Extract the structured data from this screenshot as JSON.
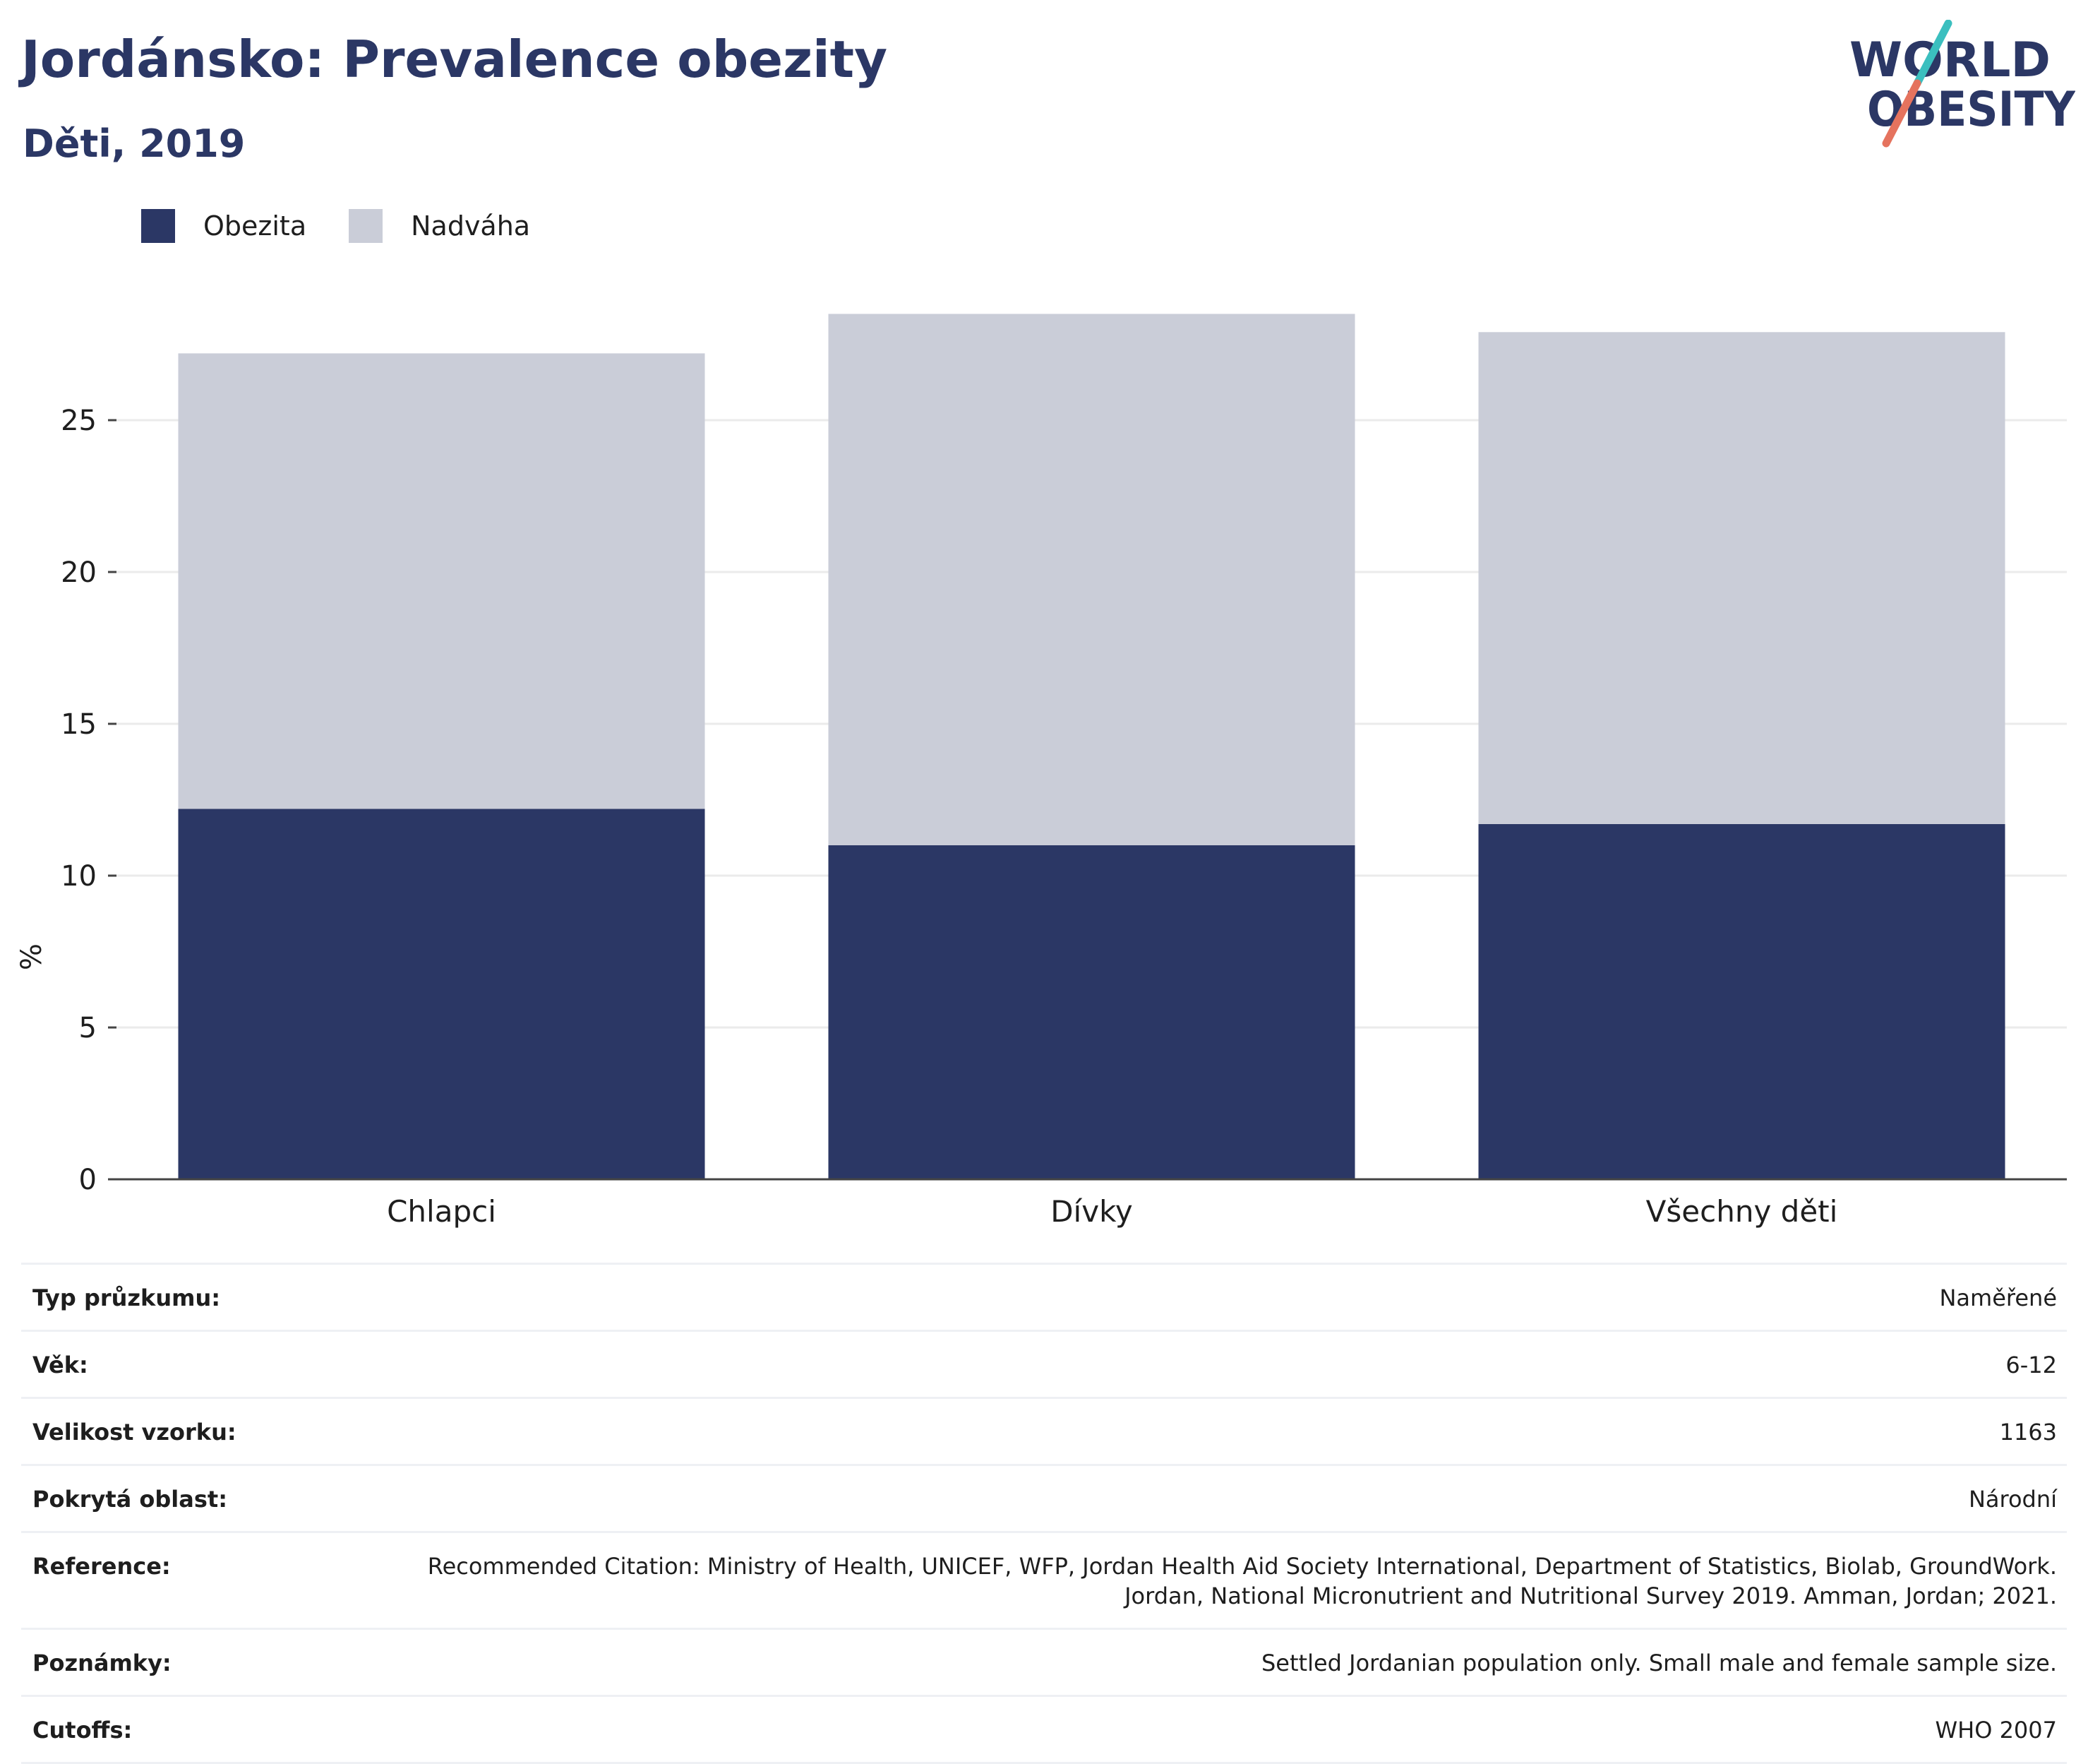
{
  "header": {
    "title": "Jordánsko: Prevalence obezity",
    "subtitle": "Děti, 2019"
  },
  "logo": {
    "line1": "WORLD",
    "line2": "OBESITY",
    "slash_color_top": "#3bbfbf",
    "slash_color_bottom": "#e5735e"
  },
  "legend": [
    {
      "label": "Obezita",
      "color": "#2b3765"
    },
    {
      "label": "Nadváha",
      "color": "#cacdd8"
    }
  ],
  "chart_data": {
    "type": "bar",
    "stacked": true,
    "categories": [
      "Chlapci",
      "Dívky",
      "Všechny děti"
    ],
    "series": [
      {
        "name": "Obezita",
        "values": [
          12.2,
          11.0,
          11.7
        ],
        "color": "#2b3765"
      },
      {
        "name": "Nadváha",
        "values": [
          15.0,
          17.5,
          16.2
        ],
        "color": "#cacdd8"
      }
    ],
    "ylabel": "%",
    "ylim": [
      0,
      30
    ],
    "yticks": [
      0,
      5,
      10,
      15,
      20,
      25
    ],
    "grid": true,
    "legend_position": "top-left"
  },
  "info": [
    {
      "label": "Typ průzkumu:",
      "value": "Naměřené"
    },
    {
      "label": "Věk:",
      "value": "6-12"
    },
    {
      "label": "Velikost vzorku:",
      "value": "1163"
    },
    {
      "label": "Pokrytá oblast:",
      "value": "Národní"
    },
    {
      "label": "Reference:",
      "value": "Recommended Citation: Ministry of Health, UNICEF, WFP, Jordan Health Aid Society International, Department of Statistics, Biolab, GroundWork. Jordan, National Micronutrient and Nutritional Survey 2019. Amman, Jordan; 2021."
    },
    {
      "label": "Poznámky:",
      "value": "Settled Jordanian population only. Small male and female sample size."
    },
    {
      "label": "Cutoffs:",
      "value": "WHO 2007"
    }
  ]
}
